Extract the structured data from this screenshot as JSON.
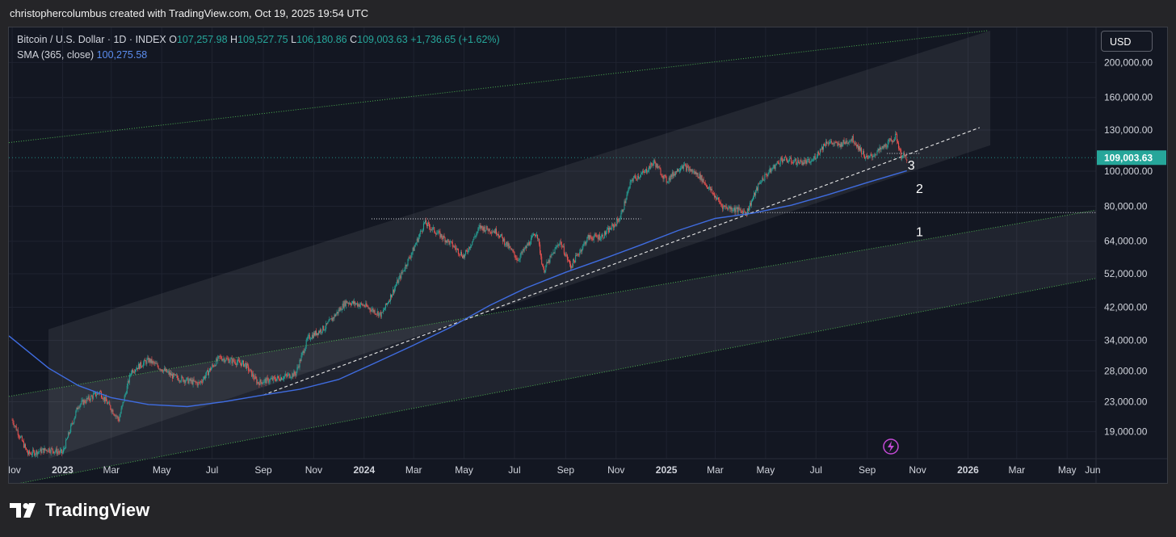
{
  "header": {
    "credit": "christophercolumbus created with TradingView.com, Oct 19, 2025 19:54 UTC"
  },
  "legend": {
    "symbol": "Bitcoin / U.S. Dollar · 1D · INDEX",
    "open_label": "O",
    "open": "107,257.98",
    "high_label": "H",
    "high": "109,527.75",
    "low_label": "L",
    "low": "106,180.86",
    "close_label": "C",
    "close": "109,003.63",
    "change": "+1,736.65 (+1.62%)",
    "sma_label": "SMA (365, close)",
    "sma_value": "100,275.58"
  },
  "currency_button": "USD",
  "footer": {
    "brand": "TradingView"
  },
  "colors": {
    "up": "#26a69a",
    "down": "#ef5350",
    "sma": "#3f6ce0",
    "channel_line": "#4caf50",
    "price_tag": "#26a69a",
    "bg": "#131722"
  },
  "chart_data": {
    "type": "line",
    "title": "Bitcoin / U.S. Dollar · 1D · INDEX",
    "y_scale": "log",
    "ylim": [
      16000,
      250000
    ],
    "x_range": [
      "2022-10-28",
      "2026-06-05"
    ],
    "y_ticks": [
      "200,000.00",
      "160,000.00",
      "130,000.00",
      "100,000.00",
      "80,000.00",
      "64,000.00",
      "52,000.00",
      "42,000.00",
      "34,000.00",
      "28,000.00",
      "23,000.00",
      "19,000.00"
    ],
    "x_ticks": [
      "Nov",
      "2023",
      "Mar",
      "May",
      "Jul",
      "Sep",
      "Nov",
      "2024",
      "Mar",
      "May",
      "Jul",
      "Sep",
      "Nov",
      "2025",
      "Mar",
      "May",
      "Jul",
      "Sep",
      "Nov",
      "2026",
      "Mar",
      "May",
      "Jun"
    ],
    "last_price_label": "109,003.63",
    "last_price": 109003.63,
    "series": [
      {
        "name": "Bitcoin / U.S. Dollar",
        "x": [
          "2022-11-01",
          "2022-11-20",
          "2022-12-15",
          "2023-01-01",
          "2023-01-20",
          "2023-02-15",
          "2023-03-10",
          "2023-03-25",
          "2023-04-15",
          "2023-05-15",
          "2023-06-15",
          "2023-07-10",
          "2023-08-10",
          "2023-08-25",
          "2023-09-15",
          "2023-10-10",
          "2023-10-25",
          "2023-11-15",
          "2023-12-10",
          "2024-01-01",
          "2024-01-22",
          "2024-02-15",
          "2024-03-01",
          "2024-03-14",
          "2024-04-15",
          "2024-05-01",
          "2024-05-20",
          "2024-06-10",
          "2024-07-05",
          "2024-07-28",
          "2024-08-05",
          "2024-08-25",
          "2024-09-07",
          "2024-09-28",
          "2024-10-15",
          "2024-10-30",
          "2024-11-06",
          "2024-11-20",
          "2024-12-05",
          "2024-12-17",
          "2025-01-01",
          "2025-01-20",
          "2025-02-10",
          "2025-03-10",
          "2025-04-08",
          "2025-04-25",
          "2025-05-20",
          "2025-06-10",
          "2025-06-25",
          "2025-07-14",
          "2025-07-28",
          "2025-08-14",
          "2025-09-01",
          "2025-09-20",
          "2025-10-06",
          "2025-10-12",
          "2025-10-19"
        ],
        "values": [
          20500,
          16500,
          17000,
          16600,
          22500,
          24500,
          20500,
          28000,
          30000,
          27000,
          25800,
          30500,
          29200,
          26000,
          26600,
          27500,
          34500,
          37000,
          43500,
          42500,
          40000,
          51800,
          61000,
          72000,
          63000,
          58000,
          70000,
          68000,
          57000,
          68000,
          53000,
          64000,
          54500,
          65500,
          66000,
          71000,
          74500,
          95000,
          99000,
          106000,
          94000,
          104000,
          97000,
          80000,
          77000,
          94000,
          108000,
          106000,
          106000,
          121000,
          118000,
          123000,
          108000,
          116000,
          125000,
          110500,
          109003.63
        ]
      },
      {
        "name": "SMA (365, close)",
        "x": [
          "2022-10-28",
          "2022-12-15",
          "2023-01-20",
          "2023-03-01",
          "2023-04-15",
          "2023-06-01",
          "2023-07-15",
          "2023-09-01",
          "2023-10-15",
          "2023-12-01",
          "2024-01-15",
          "2024-03-01",
          "2024-04-15",
          "2024-06-01",
          "2024-07-15",
          "2024-09-01",
          "2024-10-15",
          "2024-12-01",
          "2025-01-15",
          "2025-03-01",
          "2025-04-15",
          "2025-06-01",
          "2025-07-15",
          "2025-09-01",
          "2025-10-19"
        ],
        "values": [
          35000,
          28500,
          25500,
          23600,
          22600,
          22300,
          23000,
          24000,
          24900,
          26500,
          29500,
          33000,
          37000,
          42500,
          47500,
          52500,
          57000,
          62500,
          68500,
          74000,
          76500,
          80500,
          86000,
          93000,
          100275.58
        ]
      }
    ],
    "annotations": [
      {
        "text": "1",
        "x": "2025-10-30",
        "y": 66000
      },
      {
        "text": "2",
        "x": "2025-10-30",
        "y": 87000
      },
      {
        "text": "3",
        "x": "2025-10-20",
        "y": 101000
      }
    ]
  }
}
